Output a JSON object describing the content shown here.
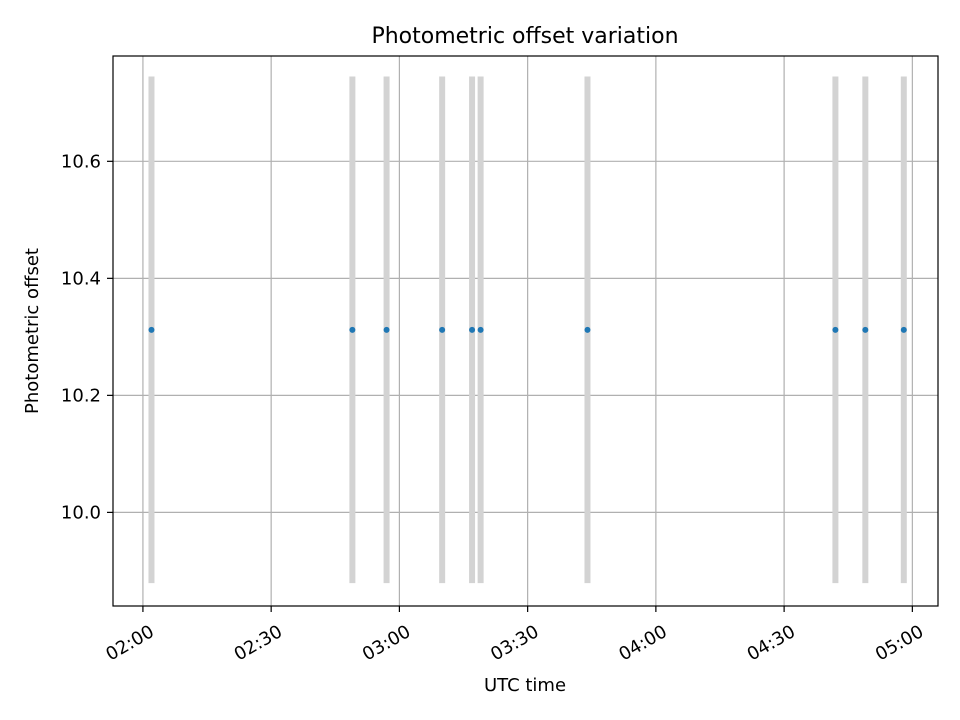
{
  "chart_data": {
    "type": "scatter",
    "title": "Photometric offset variation",
    "xlabel": "UTC time",
    "ylabel": "Photometric offset",
    "x_ticks": [
      "02:00",
      "02:30",
      "03:00",
      "03:30",
      "04:00",
      "04:30",
      "05:00"
    ],
    "y_ticks": [
      "10.0",
      "10.2",
      "10.4",
      "10.6"
    ],
    "xlim": [
      "01:53",
      "05:06"
    ],
    "ylim": [
      9.84,
      10.78
    ],
    "grid": true,
    "colors": {
      "points": "#1f77b4",
      "error_bars": "#d3d3d3",
      "grid": "#b0b0b0"
    },
    "series": [
      {
        "x": [
          "02:02",
          "02:49",
          "02:57",
          "03:10",
          "03:17",
          "03:19",
          "03:44",
          "04:42",
          "04:49",
          "04:58"
        ],
        "y": [
          10.312,
          10.312,
          10.312,
          10.312,
          10.312,
          10.312,
          10.312,
          10.312,
          10.312,
          10.312
        ],
        "y_err": [
          0.433,
          0.433,
          0.433,
          0.433,
          0.433,
          0.433,
          0.433,
          0.433,
          0.433,
          0.433
        ]
      }
    ]
  }
}
